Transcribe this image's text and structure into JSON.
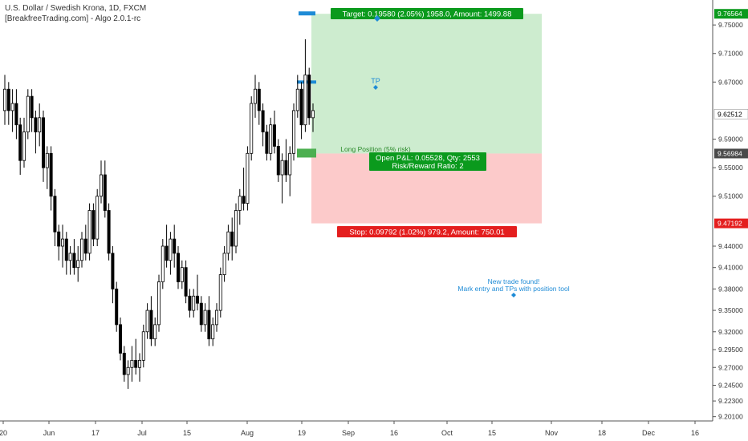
{
  "header": {
    "symbol_line": "U.S. Dollar / Swedish Krona, 1D, FXCM",
    "indicator_line": "[BreakfreeTrading.com] - Algo 2.0.1-rc"
  },
  "colors": {
    "up_candle": "#ffffff",
    "down_candle": "#000000",
    "profit_zone": "#cdeccf",
    "loss_zone": "#fccaca",
    "target_label": "#0b9a1d",
    "stop_label": "#e41e1e",
    "info_blue": "#1e8bd6",
    "entry_marker": "#4caf50",
    "last_price_badge": "#4a4a4a"
  },
  "chart_data": {
    "type": "candlestick",
    "ylim": [
      9.195,
      9.785
    ],
    "y_ticks": [
      "9.75000",
      "9.71000",
      "9.67000",
      "9.59000",
      "9.55000",
      "9.51000",
      "9.44000",
      "9.41000",
      "9.38000",
      "9.35000",
      "9.32000",
      "9.29500",
      "9.27000",
      "9.24500",
      "9.22300",
      "9.20100"
    ],
    "x_ticks": [
      "20",
      "Jun",
      "17",
      "Jul",
      "15",
      "Aug",
      "19",
      "Sep",
      "16",
      "Oct",
      "15",
      "Nov",
      "18",
      "Dec",
      "16"
    ],
    "price_badges": [
      {
        "value": 9.76564,
        "label": "9.76564",
        "color": "#0b9a1d"
      },
      {
        "value": 9.62512,
        "label": "9.62512",
        "color": "#ffffff"
      },
      {
        "value": 9.56984,
        "label": "9.56984",
        "color": "#4a4a4a"
      },
      {
        "value": 9.47192,
        "label": "9.47192",
        "color": "#e41e1e"
      }
    ],
    "candles": [
      [
        9.63,
        9.68,
        9.61,
        9.66
      ],
      [
        9.66,
        9.67,
        9.61,
        9.63
      ],
      [
        9.63,
        9.66,
        9.6,
        9.64
      ],
      [
        9.64,
        9.66,
        9.59,
        9.61
      ],
      [
        9.61,
        9.62,
        9.54,
        9.56
      ],
      [
        9.56,
        9.62,
        9.55,
        9.6
      ],
      [
        9.6,
        9.66,
        9.59,
        9.65
      ],
      [
        9.65,
        9.66,
        9.6,
        9.62
      ],
      [
        9.62,
        9.63,
        9.57,
        9.6
      ],
      [
        9.6,
        9.64,
        9.58,
        9.62
      ],
      [
        9.62,
        9.63,
        9.53,
        9.55
      ],
      [
        9.55,
        9.58,
        9.52,
        9.57
      ],
      [
        9.57,
        9.58,
        9.49,
        9.51
      ],
      [
        9.51,
        9.52,
        9.44,
        9.46
      ],
      [
        9.46,
        9.47,
        9.42,
        9.44
      ],
      [
        9.44,
        9.47,
        9.41,
        9.45
      ],
      [
        9.45,
        9.46,
        9.4,
        9.42
      ],
      [
        9.42,
        9.44,
        9.4,
        9.43
      ],
      [
        9.43,
        9.45,
        9.4,
        9.41
      ],
      [
        9.41,
        9.44,
        9.39,
        9.42
      ],
      [
        9.42,
        9.46,
        9.41,
        9.45
      ],
      [
        9.45,
        9.47,
        9.42,
        9.43
      ],
      [
        9.43,
        9.5,
        9.42,
        9.49
      ],
      [
        9.49,
        9.5,
        9.44,
        9.45
      ],
      [
        9.45,
        9.52,
        9.44,
        9.51
      ],
      [
        9.51,
        9.56,
        9.5,
        9.54
      ],
      [
        9.54,
        9.56,
        9.48,
        9.49
      ],
      [
        9.49,
        9.5,
        9.42,
        9.43
      ],
      [
        9.43,
        9.44,
        9.36,
        9.38
      ],
      [
        9.38,
        9.39,
        9.32,
        9.33
      ],
      [
        9.33,
        9.34,
        9.28,
        9.29
      ],
      [
        9.29,
        9.3,
        9.25,
        9.26
      ],
      [
        9.26,
        9.28,
        9.24,
        9.27
      ],
      [
        9.27,
        9.3,
        9.25,
        9.28
      ],
      [
        9.28,
        9.31,
        9.26,
        9.27
      ],
      [
        9.27,
        9.29,
        9.25,
        9.28
      ],
      [
        9.28,
        9.33,
        9.27,
        9.32
      ],
      [
        9.32,
        9.36,
        9.31,
        9.35
      ],
      [
        9.35,
        9.37,
        9.3,
        9.31
      ],
      [
        9.31,
        9.34,
        9.3,
        9.33
      ],
      [
        9.33,
        9.4,
        9.32,
        9.39
      ],
      [
        9.39,
        9.45,
        9.38,
        9.44
      ],
      [
        9.44,
        9.47,
        9.41,
        9.42
      ],
      [
        9.42,
        9.46,
        9.4,
        9.45
      ],
      [
        9.45,
        9.47,
        9.41,
        9.43
      ],
      [
        9.43,
        9.44,
        9.38,
        9.39
      ],
      [
        9.39,
        9.42,
        9.38,
        9.41
      ],
      [
        9.41,
        9.42,
        9.36,
        9.37
      ],
      [
        9.37,
        9.38,
        9.34,
        9.35
      ],
      [
        9.35,
        9.38,
        9.34,
        9.37
      ],
      [
        9.37,
        9.4,
        9.35,
        9.36
      ],
      [
        9.36,
        9.37,
        9.32,
        9.33
      ],
      [
        9.33,
        9.36,
        9.32,
        9.35
      ],
      [
        9.35,
        9.37,
        9.3,
        9.31
      ],
      [
        9.31,
        9.34,
        9.3,
        9.33
      ],
      [
        9.33,
        9.36,
        9.32,
        9.35
      ],
      [
        9.35,
        9.41,
        9.34,
        9.4
      ],
      [
        9.4,
        9.44,
        9.39,
        9.43
      ],
      [
        9.43,
        9.47,
        9.42,
        9.46
      ],
      [
        9.46,
        9.48,
        9.42,
        9.44
      ],
      [
        9.44,
        9.5,
        9.43,
        9.49
      ],
      [
        9.49,
        9.52,
        9.47,
        9.51
      ],
      [
        9.51,
        9.55,
        9.49,
        9.5
      ],
      [
        9.5,
        9.58,
        9.49,
        9.57
      ],
      [
        9.57,
        9.65,
        9.56,
        9.64
      ],
      [
        9.64,
        9.68,
        9.62,
        9.66
      ],
      [
        9.66,
        9.67,
        9.61,
        9.63
      ],
      [
        9.63,
        9.64,
        9.58,
        9.6
      ],
      [
        9.6,
        9.61,
        9.56,
        9.57
      ],
      [
        9.57,
        9.62,
        9.56,
        9.61
      ],
      [
        9.61,
        9.63,
        9.57,
        9.58
      ],
      [
        9.58,
        9.59,
        9.53,
        9.54
      ],
      [
        9.54,
        9.57,
        9.5,
        9.56
      ],
      [
        9.56,
        9.59,
        9.53,
        9.54
      ],
      [
        9.54,
        9.58,
        9.51,
        9.57
      ],
      [
        9.57,
        9.64,
        9.56,
        9.63
      ],
      [
        9.63,
        9.68,
        9.62,
        9.66
      ],
      [
        9.66,
        9.67,
        9.59,
        9.61
      ],
      [
        9.61,
        9.73,
        9.6,
        9.68
      ],
      [
        9.68,
        9.69,
        9.61,
        9.62
      ],
      [
        9.62,
        9.64,
        9.6,
        9.63
      ]
    ],
    "position_tool": {
      "entry": 9.56984,
      "target": 9.76564,
      "stop": 9.47192,
      "tp_level": 9.67,
      "target_label": "Target: 0.19580 (2.05%) 1958.0, Amount: 1499.88",
      "stop_label": "Stop: 0.09792 (1.02%) 979.2, Amount: 750.01",
      "pnl_label": "Open P&L: 0.05528, Qty: 2553",
      "rr_label": "Risk/Reward Ratio: 2",
      "position_label": "Long Position (5% risk)",
      "tp_label": "TP"
    },
    "annotation": {
      "line1": "New trade found!",
      "line2": "Mark entry and TPs with position tool",
      "price": 9.375
    }
  }
}
